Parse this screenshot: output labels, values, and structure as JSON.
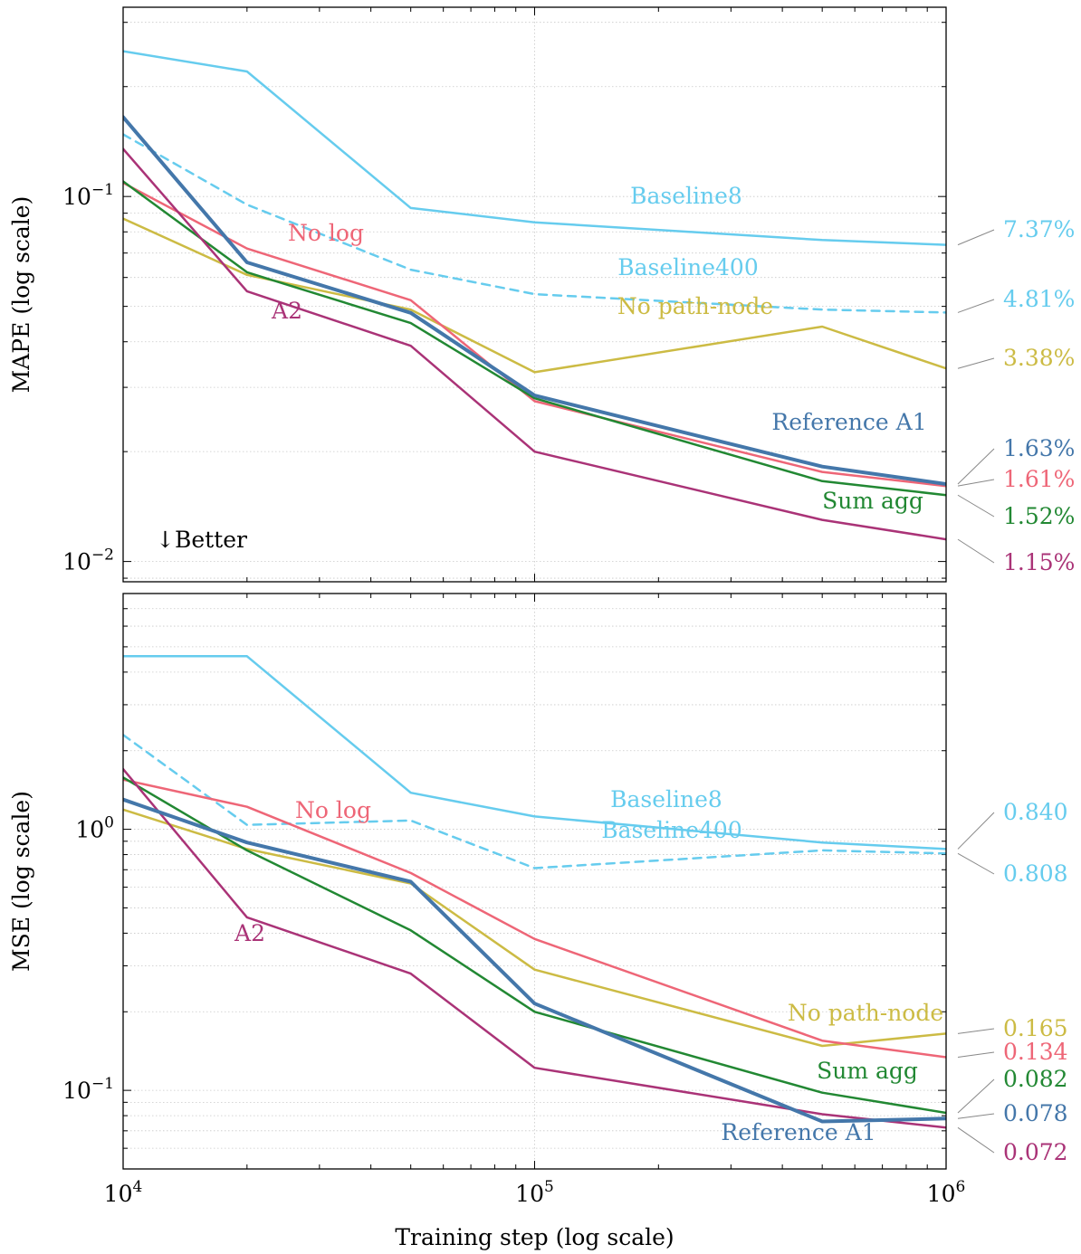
{
  "chart_data": [
    {
      "type": "line",
      "ylabel": "MAPE (log scale)",
      "xlabel": "",
      "x_scale": "log",
      "y_scale": "log",
      "xlim": [
        10000,
        1000000
      ],
      "ylim": [
        0.0088,
        0.33
      ],
      "y_ticks": [
        {
          "value": 0.1,
          "base": "10",
          "exp": "−1"
        },
        {
          "value": 0.01,
          "base": "10",
          "exp": "−2"
        }
      ],
      "grid": true,
      "annotation": "↓Better",
      "x": [
        10000,
        20000,
        50000,
        100000,
        500000,
        1000000
      ],
      "series": [
        {
          "key": "baseline8",
          "name": "Baseline8",
          "color": "#66ccee",
          "style": "solid",
          "width": 2.5,
          "values": [
            0.25,
            0.22,
            0.093,
            0.085,
            0.076,
            0.0737
          ],
          "end_label": "7.37%"
        },
        {
          "key": "baseline400",
          "name": "Baseline400",
          "color": "#66ccee",
          "style": "dashed",
          "width": 2.5,
          "values": [
            0.148,
            0.095,
            0.063,
            0.054,
            0.049,
            0.0481
          ],
          "end_label": "4.81%"
        },
        {
          "key": "nopath",
          "name": "No path-node",
          "color": "#ccbb44",
          "style": "solid",
          "width": 2.5,
          "values": [
            0.087,
            0.061,
            0.049,
            0.033,
            0.044,
            0.0338
          ],
          "end_label": "3.38%"
        },
        {
          "key": "nolog",
          "name": "No log",
          "color": "#ee6677",
          "style": "solid",
          "width": 2.5,
          "values": [
            0.109,
            0.072,
            0.052,
            0.0275,
            0.0176,
            0.0161
          ],
          "end_label": "1.61%"
        },
        {
          "key": "sumagg",
          "name": "Sum agg",
          "color": "#228833",
          "style": "solid",
          "width": 2.5,
          "values": [
            0.11,
            0.062,
            0.045,
            0.028,
            0.0166,
            0.0152
          ],
          "end_label": "1.52%"
        },
        {
          "key": "a2",
          "name": "A2",
          "color": "#aa3377",
          "style": "solid",
          "width": 2.5,
          "values": [
            0.135,
            0.055,
            0.039,
            0.02,
            0.013,
            0.0115
          ],
          "end_label": "1.15%"
        },
        {
          "key": "ref",
          "name": "Reference A1",
          "color": "#4477aa",
          "style": "solid",
          "width": 4,
          "values": [
            0.165,
            0.066,
            0.048,
            0.0285,
            0.0182,
            0.0163
          ],
          "end_label": "1.63%"
        }
      ]
    },
    {
      "type": "line",
      "ylabel": "MSE (log scale)",
      "xlabel": "Training step (log scale)",
      "x_scale": "log",
      "y_scale": "log",
      "xlim": [
        10000,
        1000000
      ],
      "ylim": [
        0.05,
        8.0
      ],
      "y_ticks": [
        {
          "value": 1,
          "base": "10",
          "exp": "0"
        },
        {
          "value": 0.1,
          "base": "10",
          "exp": "−1"
        }
      ],
      "x_ticks": [
        {
          "value": 10000,
          "base": "10",
          "exp": "4"
        },
        {
          "value": 100000,
          "base": "10",
          "exp": "5"
        },
        {
          "value": 1000000,
          "base": "10",
          "exp": "6"
        }
      ],
      "grid": true,
      "x": [
        10000,
        20000,
        50000,
        100000,
        500000,
        1000000
      ],
      "series": [
        {
          "key": "baseline8",
          "name": "Baseline8",
          "color": "#66ccee",
          "style": "solid",
          "width": 2.5,
          "values": [
            4.6,
            4.6,
            1.38,
            1.12,
            0.89,
            0.84
          ],
          "end_label": "0.840"
        },
        {
          "key": "baseline400",
          "name": "Baseline400",
          "color": "#66ccee",
          "style": "dashed",
          "width": 2.5,
          "values": [
            2.3,
            1.04,
            1.08,
            0.71,
            0.83,
            0.808
          ],
          "end_label": "0.808"
        },
        {
          "key": "nopath",
          "name": "No path-node",
          "color": "#ccbb44",
          "style": "solid",
          "width": 2.5,
          "values": [
            1.19,
            0.84,
            0.62,
            0.29,
            0.148,
            0.165
          ],
          "end_label": "0.165"
        },
        {
          "key": "nolog",
          "name": "No log",
          "color": "#ee6677",
          "style": "solid",
          "width": 2.5,
          "values": [
            1.55,
            1.22,
            0.68,
            0.38,
            0.155,
            0.134
          ],
          "end_label": "0.134"
        },
        {
          "key": "sumagg",
          "name": "Sum agg",
          "color": "#228833",
          "style": "solid",
          "width": 2.5,
          "values": [
            1.58,
            0.83,
            0.41,
            0.2,
            0.098,
            0.082
          ],
          "end_label": "0.082"
        },
        {
          "key": "a2",
          "name": "A2",
          "color": "#aa3377",
          "style": "solid",
          "width": 2.5,
          "values": [
            1.7,
            0.46,
            0.28,
            0.122,
            0.081,
            0.072
          ],
          "end_label": "0.072"
        },
        {
          "key": "ref",
          "name": "Reference A1",
          "color": "#4477aa",
          "style": "solid",
          "width": 4,
          "values": [
            1.3,
            0.89,
            0.63,
            0.215,
            0.076,
            0.078
          ],
          "end_label": "0.078"
        }
      ]
    }
  ]
}
